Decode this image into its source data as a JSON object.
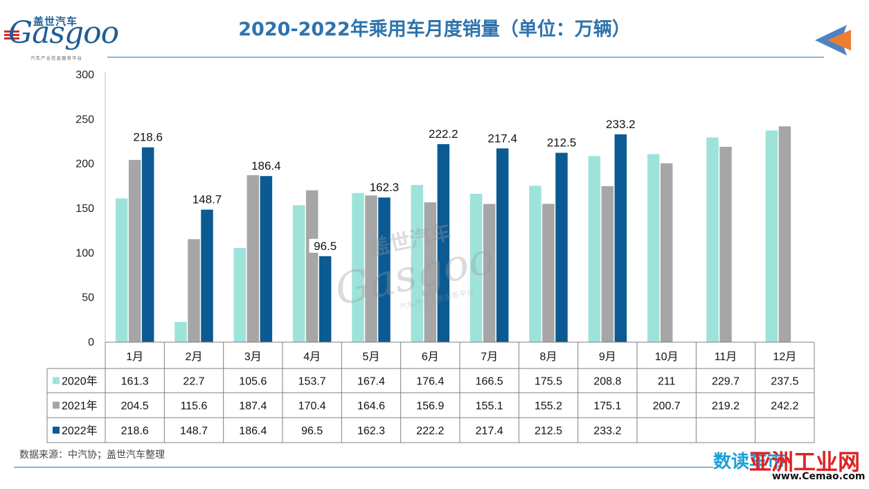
{
  "header": {
    "logo_cn": "盖世汽车",
    "logo_en": "Gasgoo",
    "logo_sub": "汽车产业信息服务平台",
    "title": "2020-2022年乘用车月度销量（单位：万辆）"
  },
  "footer": {
    "source": "数据来源：中汽协；盖世汽车整理",
    "watermark_cn": "数读车市",
    "corner_brand": "亚洲工业网",
    "corner_url": "www.Cemao.com"
  },
  "colors": {
    "title": "#2e73ac",
    "series": [
      "#9ee3da",
      "#a6a6a6",
      "#0b5a93"
    ],
    "arrow_blue": "#4f82c3",
    "arrow_orange": "#ed7d31"
  },
  "chart_data": {
    "type": "bar",
    "title": "2020-2022年乘用车月度销量（单位：万辆）",
    "xlabel": "",
    "ylabel": "",
    "ylim": [
      0,
      300
    ],
    "yticks": [
      0,
      50,
      100,
      150,
      200,
      250,
      300
    ],
    "grid": false,
    "legend": "table",
    "categories": [
      "1月",
      "2月",
      "3月",
      "4月",
      "5月",
      "6月",
      "7月",
      "8月",
      "9月",
      "10月",
      "11月",
      "12月"
    ],
    "series": [
      {
        "name": "2020年",
        "values": [
          161.3,
          22.7,
          105.6,
          153.7,
          167.4,
          176.4,
          166.5,
          175.5,
          208.8,
          211,
          229.7,
          237.5
        ]
      },
      {
        "name": "2021年",
        "values": [
          204.5,
          115.6,
          187.4,
          170.4,
          164.6,
          156.9,
          155.1,
          155.2,
          175.1,
          200.7,
          219.2,
          242.2
        ]
      },
      {
        "name": "2022年",
        "values": [
          218.6,
          148.7,
          186.4,
          96.5,
          162.3,
          222.2,
          217.4,
          212.5,
          233.2,
          null,
          null,
          null
        ]
      }
    ],
    "data_labels": {
      "series": "2022年",
      "values": [
        "218.6",
        "148.7",
        "186.4",
        "96.5",
        "162.3",
        "222.2",
        "217.4",
        "212.5",
        "233.2"
      ]
    },
    "table": {
      "rows": [
        [
          "161.3",
          "22.7",
          "105.6",
          "153.7",
          "167.4",
          "176.4",
          "166.5",
          "175.5",
          "208.8",
          "211",
          "229.7",
          "237.5"
        ],
        [
          "204.5",
          "115.6",
          "187.4",
          "170.4",
          "164.6",
          "156.9",
          "155.1",
          "155.2",
          "175.1",
          "200.7",
          "219.2",
          "242.2"
        ],
        [
          "218.6",
          "148.7",
          "186.4",
          "96.5",
          "162.3",
          "222.2",
          "217.4",
          "212.5",
          "233.2",
          "",
          "",
          ""
        ]
      ]
    }
  }
}
